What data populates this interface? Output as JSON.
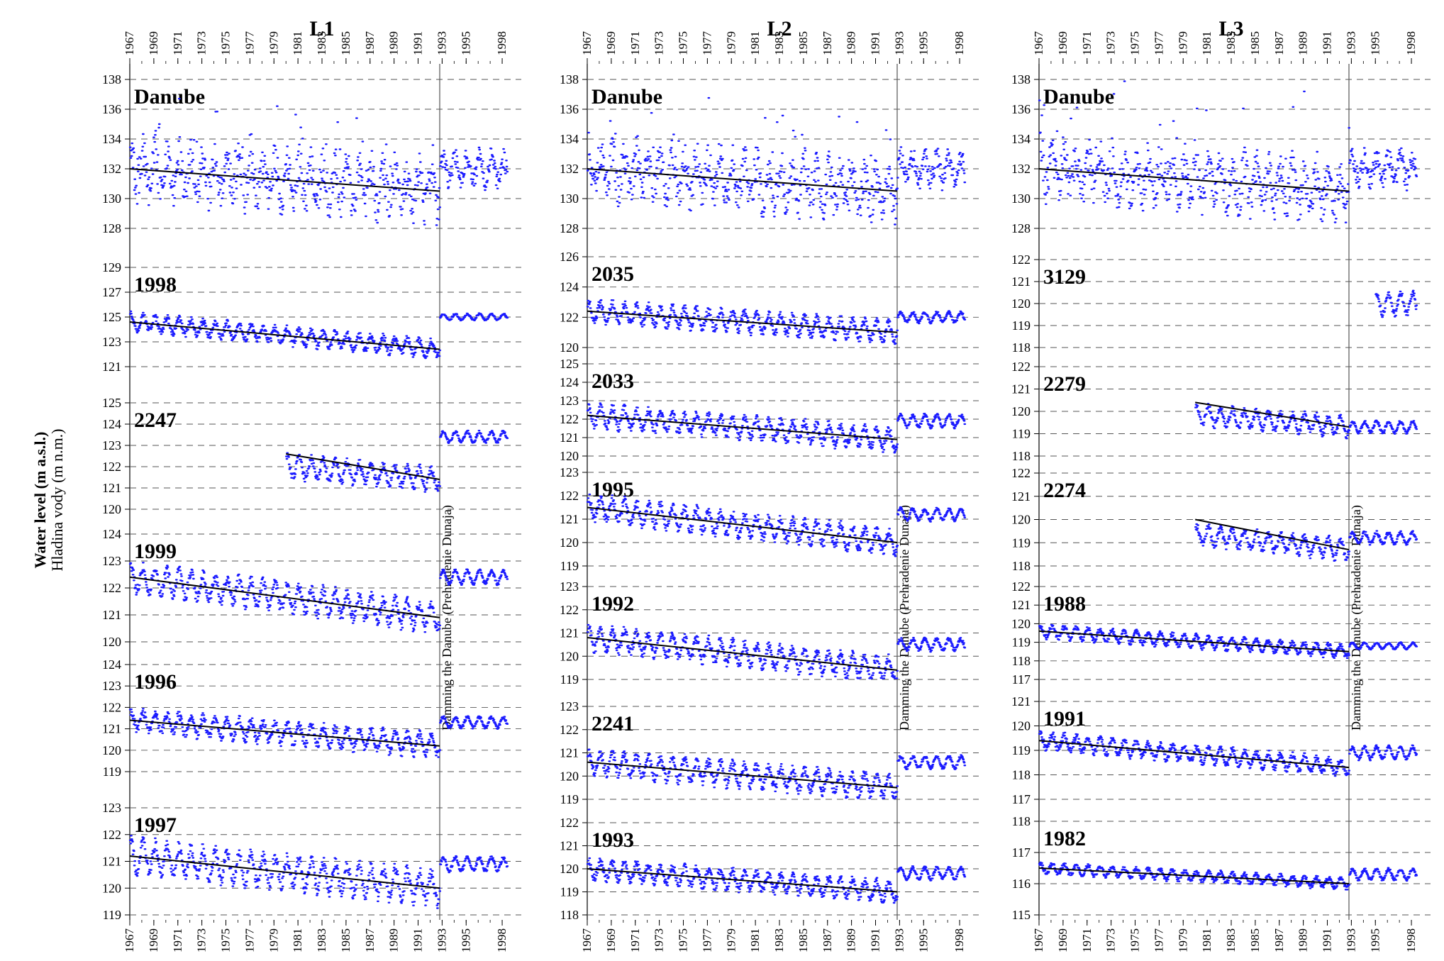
{
  "chart_data": {
    "type": "line",
    "ylabel": "Water level (m a.s.l.)",
    "ylabel_secondary": "Hladina vody (m n.m.)",
    "year_ticks": [
      "1967",
      "1969",
      "1971",
      "1973",
      "1975",
      "1977",
      "1979",
      "1981",
      "1983",
      "1985",
      "1987",
      "1989",
      "1991",
      "1993",
      "1995",
      "1998"
    ],
    "x_range_years": [
      1967,
      1999
    ],
    "damming_year": 1992.8,
    "damming_label": "Damming the Danube (Prehradenie Dunaja)",
    "series_color": "#1a1aff",
    "trend_color": "#000000",
    "grid": "dashed horizontal",
    "columns": [
      {
        "title": "L1",
        "panels": [
          {
            "label": "Danube",
            "ylim": [
              128,
              138
            ],
            "yticks": [
              128,
              130,
              132,
              134,
              136,
              138
            ],
            "start": 1967,
            "mean_start": 132.0,
            "mean_end": 130.5,
            "amplitude": 1.6,
            "post_level": 132.0,
            "post_amplitude": 1.0,
            "trend": [
              132.0,
              130.5
            ]
          },
          {
            "label": "1998",
            "ylim": [
              121,
              129
            ],
            "yticks": [
              121,
              123,
              125,
              127,
              129
            ],
            "start": 1967,
            "mean_start": 124.6,
            "mean_end": 122.4,
            "amplitude": 0.8,
            "post_level": 125.0,
            "post_amplitude": 0.3,
            "trend": [
              124.6,
              122.4
            ]
          },
          {
            "label": "2247",
            "ylim": [
              120,
              125
            ],
            "yticks": [
              120,
              121,
              122,
              123,
              124,
              125
            ],
            "start": 1980,
            "mean_start": 122.6,
            "mean_end": 121.4,
            "amplitude": 0.6,
            "post_level": 123.4,
            "post_amplitude": 0.3,
            "trend": [
              122.6,
              121.4
            ]
          },
          {
            "label": "1999",
            "ylim": [
              120,
              124
            ],
            "yticks": [
              120,
              121,
              122,
              123,
              124
            ],
            "start": 1967,
            "mean_start": 122.4,
            "mean_end": 120.9,
            "amplitude": 0.6,
            "post_level": 122.4,
            "post_amplitude": 0.3,
            "trend": [
              122.4,
              120.9
            ]
          },
          {
            "label": "1996",
            "ylim": [
              119,
              124
            ],
            "yticks": [
              119,
              120,
              121,
              122,
              123,
              124
            ],
            "start": 1967,
            "mean_start": 121.4,
            "mean_end": 120.2,
            "amplitude": 0.6,
            "post_level": 121.3,
            "post_amplitude": 0.3,
            "trend": [
              121.4,
              120.2
            ]
          },
          {
            "label": "1997",
            "ylim": [
              119,
              123
            ],
            "yticks": [
              119,
              120,
              121,
              122,
              123
            ],
            "start": 1967,
            "mean_start": 121.2,
            "mean_end": 120.0,
            "amplitude": 0.7,
            "post_level": 120.9,
            "post_amplitude": 0.3,
            "trend": [
              121.2,
              120.0
            ]
          }
        ]
      },
      {
        "title": "L2",
        "panels": [
          {
            "label": "Danube",
            "ylim": [
              128,
              138
            ],
            "yticks": [
              128,
              130,
              132,
              134,
              136,
              138
            ],
            "start": 1967,
            "mean_start": 132.0,
            "mean_end": 130.5,
            "amplitude": 1.6,
            "post_level": 132.0,
            "post_amplitude": 1.0,
            "trend": [
              132.0,
              130.5
            ]
          },
          {
            "label": "2035",
            "ylim": [
              120,
              126
            ],
            "yticks": [
              120,
              122,
              124,
              126
            ],
            "start": 1967,
            "mean_start": 122.4,
            "mean_end": 121.0,
            "amplitude": 0.8,
            "post_level": 122.0,
            "post_amplitude": 0.4,
            "trend": [
              122.4,
              121.0
            ]
          },
          {
            "label": "2033",
            "ylim": [
              120,
              125
            ],
            "yticks": [
              120,
              121,
              122,
              123,
              124,
              125
            ],
            "start": 1967,
            "mean_start": 122.2,
            "mean_end": 120.9,
            "amplitude": 0.7,
            "post_level": 121.9,
            "post_amplitude": 0.4,
            "trend": [
              122.2,
              120.9
            ]
          },
          {
            "label": "1995",
            "ylim": [
              119,
              123
            ],
            "yticks": [
              119,
              120,
              121,
              122,
              123
            ],
            "start": 1967,
            "mean_start": 121.5,
            "mean_end": 120.0,
            "amplitude": 0.6,
            "post_level": 121.2,
            "post_amplitude": 0.3,
            "trend": [
              121.5,
              120.0
            ]
          },
          {
            "label": "1992",
            "ylim": [
              119,
              123
            ],
            "yticks": [
              119,
              120,
              121,
              122,
              123
            ],
            "start": 1967,
            "mean_start": 120.8,
            "mean_end": 119.4,
            "amplitude": 0.6,
            "post_level": 120.5,
            "post_amplitude": 0.3,
            "trend": [
              120.8,
              119.4
            ]
          },
          {
            "label": "2241",
            "ylim": [
              119,
              123
            ],
            "yticks": [
              119,
              120,
              121,
              122,
              123
            ],
            "start": 1967,
            "mean_start": 120.6,
            "mean_end": 119.5,
            "amplitude": 0.6,
            "post_level": 120.6,
            "post_amplitude": 0.3,
            "trend": [
              120.6,
              119.5
            ]
          },
          {
            "label": "1993",
            "ylim": [
              118,
              122
            ],
            "yticks": [
              118,
              119,
              120,
              121,
              122
            ],
            "start": 1967,
            "mean_start": 120.0,
            "mean_end": 119.0,
            "amplitude": 0.5,
            "post_level": 119.8,
            "post_amplitude": 0.3,
            "trend": [
              120.0,
              119.0
            ]
          }
        ]
      },
      {
        "title": "L3",
        "panels": [
          {
            "label": "Danube",
            "ylim": [
              128,
              138
            ],
            "yticks": [
              128,
              130,
              132,
              134,
              136,
              138
            ],
            "start": 1967,
            "mean_start": 132.0,
            "mean_end": 130.5,
            "amplitude": 1.6,
            "post_level": 132.0,
            "post_amplitude": 1.0,
            "trend": [
              132.0,
              130.5
            ]
          },
          {
            "label": "3129",
            "ylim": [
              118,
              122
            ],
            "yticks": [
              118,
              119,
              120,
              121,
              122
            ],
            "start": 1995,
            "mean_start": 120.0,
            "mean_end": 120.0,
            "amplitude": 0.6,
            "post_level": 120.0,
            "post_amplitude": 0.6,
            "trend": null
          },
          {
            "label": "2279",
            "ylim": [
              118,
              122
            ],
            "yticks": [
              118,
              119,
              120,
              121,
              122
            ],
            "start": 1980,
            "mean_start": 120.4,
            "mean_end": 119.3,
            "amplitude": 0.5,
            "post_level": 119.3,
            "post_amplitude": 0.3,
            "trend": [
              120.4,
              119.3
            ]
          },
          {
            "label": "2274",
            "ylim": [
              118,
              122
            ],
            "yticks": [
              118,
              119,
              120,
              121,
              122
            ],
            "start": 1980,
            "mean_start": 120.0,
            "mean_end": 118.7,
            "amplitude": 0.5,
            "post_level": 119.2,
            "post_amplitude": 0.3,
            "trend": [
              120.0,
              118.7
            ]
          },
          {
            "label": "1988",
            "ylim": [
              117,
              122
            ],
            "yticks": [
              117,
              118,
              119,
              120,
              121,
              122
            ],
            "start": 1967,
            "mean_start": 119.6,
            "mean_end": 118.5,
            "amplitude": 0.4,
            "post_level": 118.8,
            "post_amplitude": 0.2,
            "trend": [
              119.6,
              118.5
            ]
          },
          {
            "label": "1991",
            "ylim": [
              117,
              121
            ],
            "yticks": [
              117,
              118,
              119,
              120,
              121
            ],
            "start": 1967,
            "mean_start": 119.4,
            "mean_end": 118.3,
            "amplitude": 0.4,
            "post_level": 118.9,
            "post_amplitude": 0.3,
            "trend": [
              119.4,
              118.3
            ]
          },
          {
            "label": "1982",
            "ylim": [
              115,
              118
            ],
            "yticks": [
              115,
              116,
              117,
              118
            ],
            "start": 1967,
            "mean_start": 116.5,
            "mean_end": 116.0,
            "amplitude": 0.2,
            "post_level": 116.3,
            "post_amplitude": 0.2,
            "trend": [
              116.5,
              116.0
            ]
          }
        ]
      }
    ]
  }
}
